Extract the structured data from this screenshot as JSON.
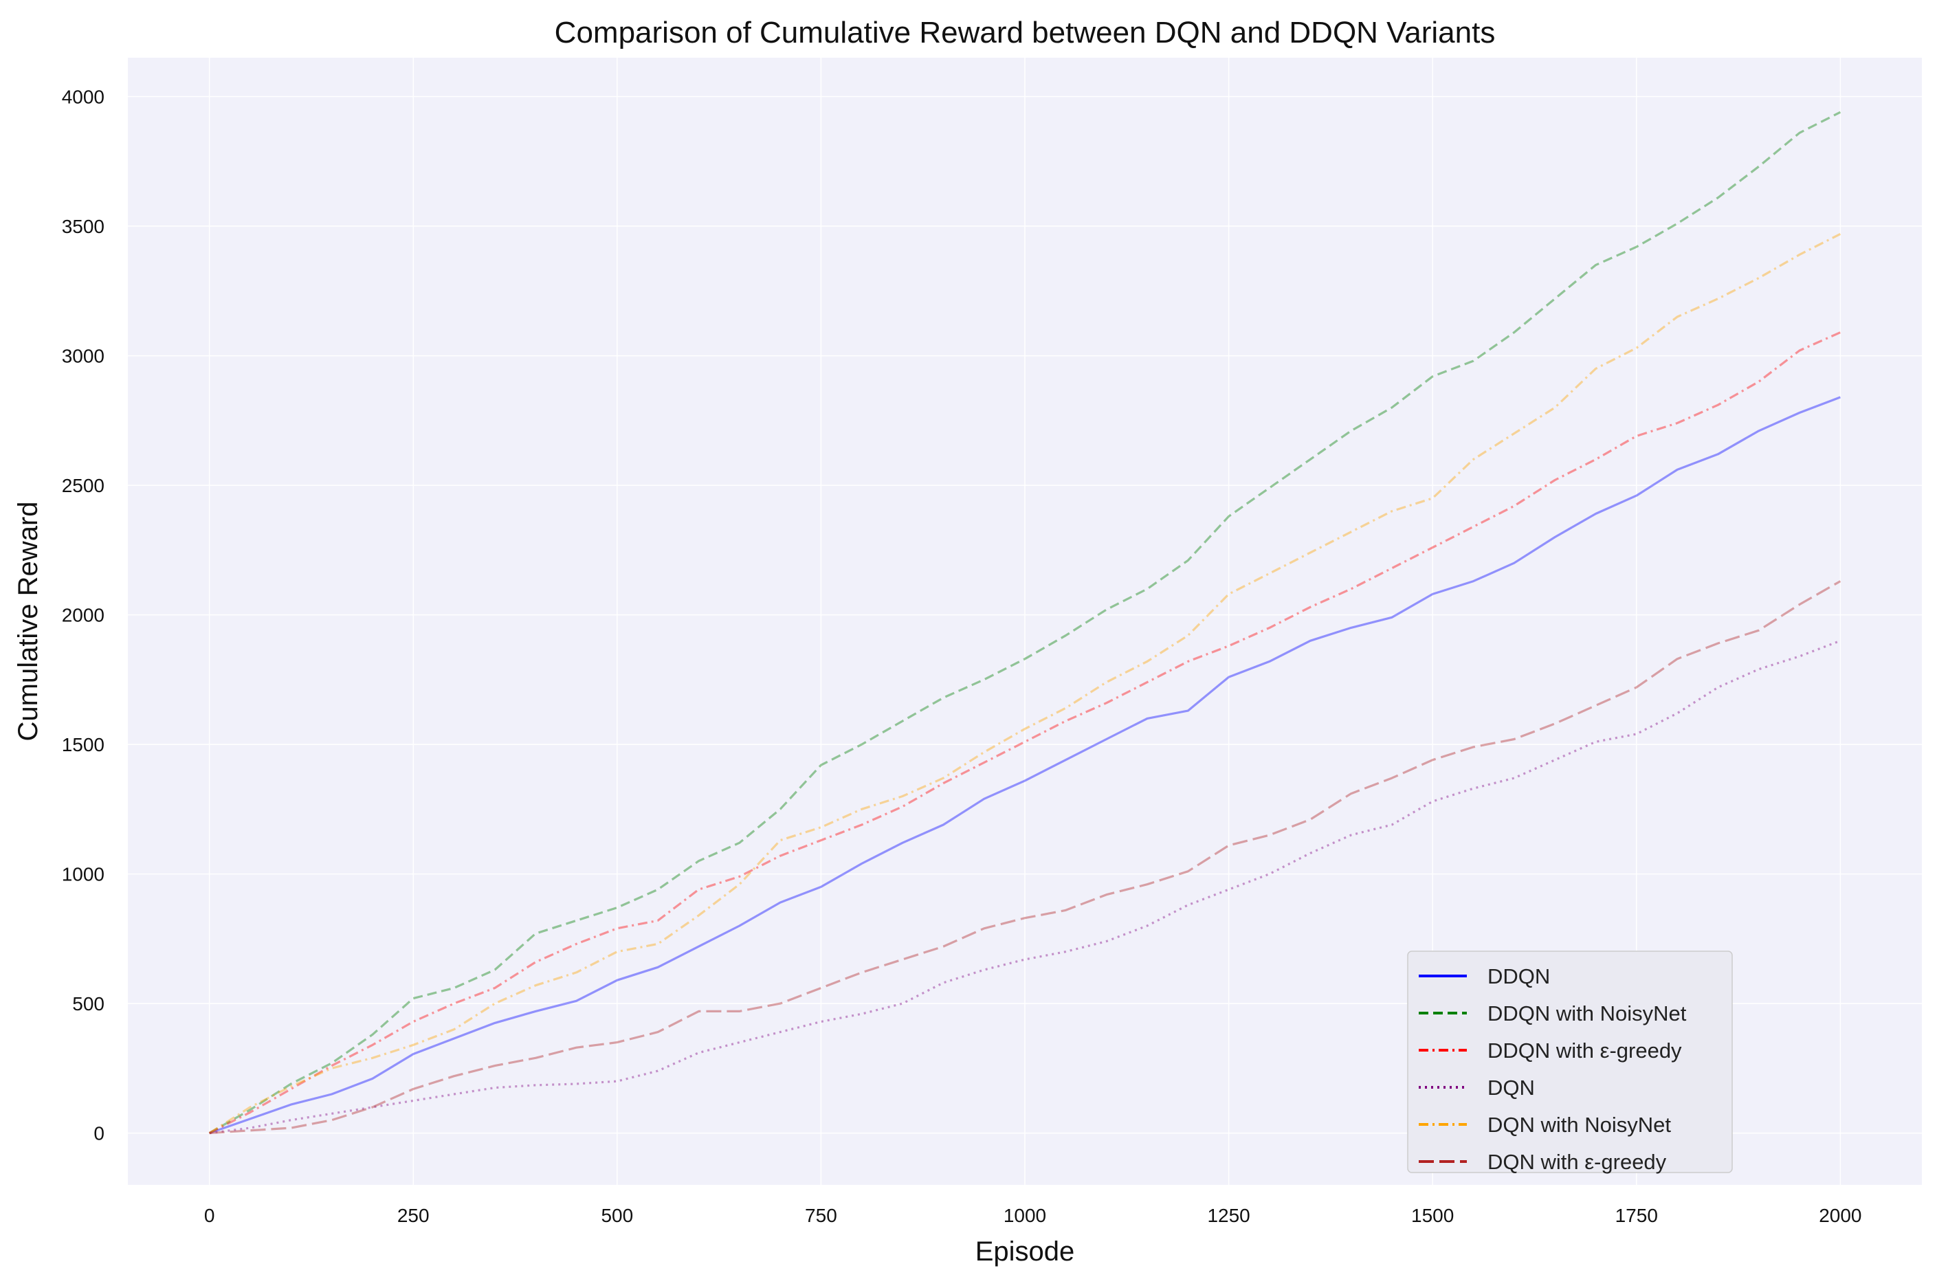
{
  "chart_data": {
    "type": "line",
    "title": "Comparison of Cumulative Reward between DQN and DDQN Variants",
    "xlabel": "Episode",
    "ylabel": "Cumulative Reward",
    "xlim": [
      -100,
      2100
    ],
    "ylim": [
      -200,
      4150
    ],
    "x_ticks": [
      0,
      250,
      500,
      750,
      1000,
      1250,
      1500,
      1750,
      2000
    ],
    "y_ticks": [
      0,
      500,
      1000,
      1500,
      2000,
      2500,
      3000,
      3500,
      4000
    ],
    "grid": true,
    "legend_position": "lower-right",
    "x": [
      0,
      50,
      100,
      150,
      200,
      250,
      300,
      350,
      400,
      450,
      500,
      550,
      600,
      650,
      700,
      750,
      800,
      850,
      900,
      950,
      1000,
      1050,
      1100,
      1150,
      1200,
      1250,
      1300,
      1350,
      1400,
      1450,
      1500,
      1550,
      1600,
      1650,
      1700,
      1750,
      1800,
      1850,
      1900,
      1950,
      2000
    ],
    "series": [
      {
        "name": "DDQN",
        "color": "#0000ff",
        "dash": "solid",
        "line_alpha": 0.4,
        "values": [
          0,
          55,
          110,
          150,
          210,
          305,
          365,
          425,
          470,
          510,
          590,
          640,
          720,
          800,
          890,
          950,
          1040,
          1120,
          1190,
          1290,
          1360,
          1440,
          1520,
          1600,
          1630,
          1760,
          1820,
          1900,
          1950,
          1990,
          2080,
          2130,
          2200,
          2300,
          2390,
          2460,
          2560,
          2620,
          2710,
          2780,
          2840
        ]
      },
      {
        "name": "DDQN with NoisyNet",
        "color": "#008000",
        "dash": "dashed",
        "line_alpha": 0.4,
        "values": [
          0,
          90,
          190,
          270,
          380,
          520,
          560,
          630,
          770,
          820,
          870,
          940,
          1050,
          1120,
          1250,
          1420,
          1500,
          1590,
          1680,
          1750,
          1830,
          1920,
          2020,
          2100,
          2210,
          2380,
          2490,
          2600,
          2710,
          2800,
          2920,
          2980,
          3090,
          3220,
          3350,
          3420,
          3510,
          3610,
          3730,
          3860,
          3940
        ]
      },
      {
        "name": "DDQN with ε-greedy",
        "color": "#ff0000",
        "dash": "dashdot",
        "line_alpha": 0.4,
        "values": [
          0,
          80,
          170,
          260,
          340,
          430,
          500,
          560,
          660,
          730,
          790,
          820,
          940,
          990,
          1070,
          1130,
          1190,
          1260,
          1350,
          1430,
          1510,
          1590,
          1660,
          1740,
          1820,
          1880,
          1950,
          2030,
          2100,
          2180,
          2260,
          2340,
          2420,
          2520,
          2600,
          2690,
          2740,
          2810,
          2900,
          3020,
          3090
        ]
      },
      {
        "name": "DQN",
        "color": "#800080",
        "dash": "dotted",
        "line_alpha": 0.4,
        "values": [
          0,
          20,
          50,
          75,
          100,
          125,
          150,
          175,
          185,
          190,
          200,
          240,
          310,
          350,
          390,
          430,
          460,
          500,
          580,
          630,
          670,
          700,
          740,
          800,
          880,
          940,
          1000,
          1080,
          1150,
          1190,
          1280,
          1330,
          1370,
          1440,
          1510,
          1540,
          1620,
          1720,
          1790,
          1840,
          1900
        ]
      },
      {
        "name": "DQN with NoisyNet",
        "color": "#ffa500",
        "dash": "dashdot",
        "line_alpha": 0.4,
        "values": [
          0,
          100,
          180,
          250,
          290,
          340,
          400,
          500,
          570,
          620,
          700,
          730,
          840,
          960,
          1130,
          1180,
          1250,
          1300,
          1370,
          1470,
          1560,
          1640,
          1740,
          1820,
          1920,
          2080,
          2160,
          2240,
          2320,
          2400,
          2450,
          2600,
          2700,
          2800,
          2950,
          3030,
          3150,
          3220,
          3300,
          3390,
          3470
        ]
      },
      {
        "name": "DQN with ε-greedy",
        "color": "#b22222",
        "dash": "loosedash",
        "line_alpha": 0.4,
        "values": [
          0,
          10,
          20,
          50,
          100,
          170,
          220,
          260,
          290,
          330,
          350,
          390,
          470,
          470,
          500,
          560,
          620,
          670,
          720,
          790,
          830,
          860,
          920,
          960,
          1010,
          1110,
          1150,
          1210,
          1310,
          1370,
          1440,
          1490,
          1520,
          1580,
          1650,
          1720,
          1830,
          1890,
          1940,
          2040,
          2130
        ]
      }
    ]
  }
}
